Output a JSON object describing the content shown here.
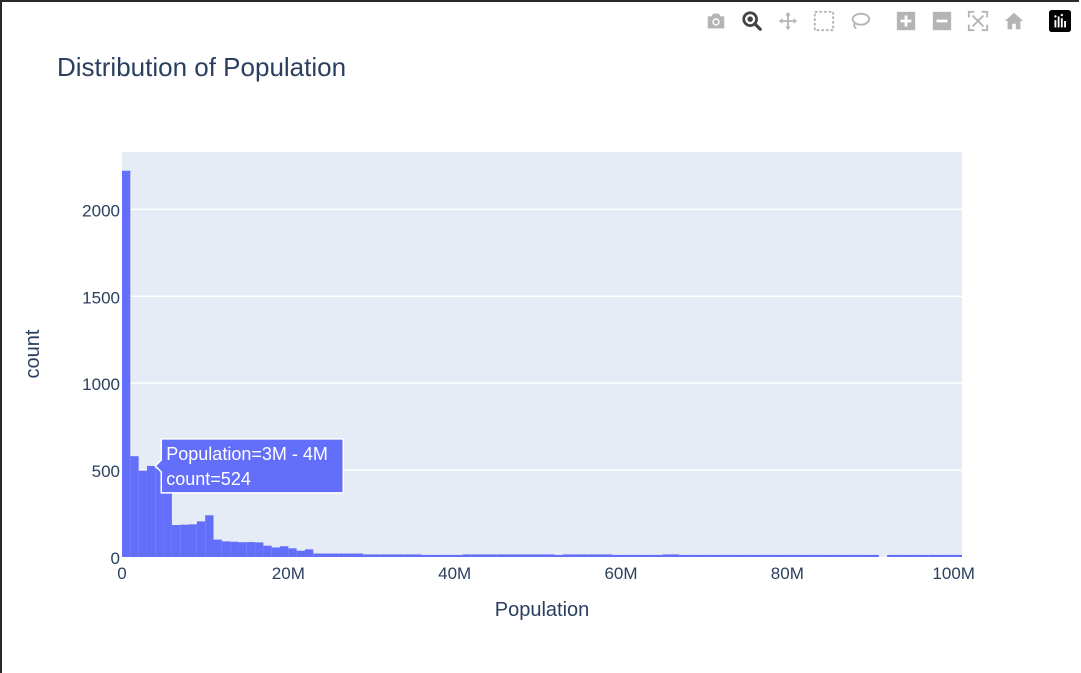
{
  "modebar": {
    "buttons": [
      {
        "name": "camera-icon"
      },
      {
        "name": "zoom-icon"
      },
      {
        "name": "pan-icon"
      },
      {
        "name": "box-select-icon"
      },
      {
        "name": "lasso-select-icon"
      },
      {
        "name": "zoom-in-icon"
      },
      {
        "name": "zoom-out-icon"
      },
      {
        "name": "autoscale-icon"
      },
      {
        "name": "reset-axes-icon"
      },
      {
        "name": "plotly-logo-icon"
      }
    ],
    "active_color": "#444444",
    "inactive_color": "#b4b4b4"
  },
  "chart_data": {
    "type": "bar",
    "title": "Distribution of Population",
    "xlabel": "Population",
    "ylabel": "count",
    "bin_width": 1000000,
    "x_start": 0,
    "xlim": [
      0,
      101000000
    ],
    "ylim": [
      0,
      2330
    ],
    "x_ticks": [
      {
        "value": 0,
        "label": "0"
      },
      {
        "value": 20000000,
        "label": "20M"
      },
      {
        "value": 40000000,
        "label": "40M"
      },
      {
        "value": 60000000,
        "label": "60M"
      },
      {
        "value": 80000000,
        "label": "80M"
      },
      {
        "value": 100000000,
        "label": "100M"
      }
    ],
    "y_ticks": [
      {
        "value": 0,
        "label": "0"
      },
      {
        "value": 500,
        "label": "500"
      },
      {
        "value": 1000,
        "label": "1000"
      },
      {
        "value": 1500,
        "label": "1500"
      },
      {
        "value": 2000,
        "label": "2000"
      }
    ],
    "counts": [
      2222,
      580,
      497,
      524,
      510,
      390,
      184,
      186,
      188,
      205,
      240,
      100,
      90,
      88,
      85,
      86,
      84,
      65,
      55,
      62,
      50,
      36,
      44,
      20,
      20,
      20,
      20,
      20,
      20,
      15,
      15,
      15,
      15,
      15,
      15,
      15,
      12,
      12,
      12,
      12,
      12,
      15,
      15,
      15,
      15,
      15,
      15,
      15,
      15,
      15,
      15,
      15,
      12,
      15,
      15,
      15,
      15,
      15,
      15,
      12,
      12,
      12,
      12,
      12,
      12,
      15,
      15,
      12,
      12,
      12,
      12,
      12,
      12,
      12,
      12,
      12,
      12,
      12,
      12,
      12,
      12,
      12,
      12,
      12,
      12,
      12,
      12,
      12,
      12,
      12,
      12,
      0,
      12,
      12,
      12,
      12,
      12,
      12,
      12,
      12,
      12
    ],
    "grid": true,
    "bar_color": "#636efa",
    "plot_bg": "#e5ecf6",
    "tooltip": {
      "bin_index": 3,
      "line1": "Population=3M - 4M",
      "line2": "count=524"
    }
  }
}
